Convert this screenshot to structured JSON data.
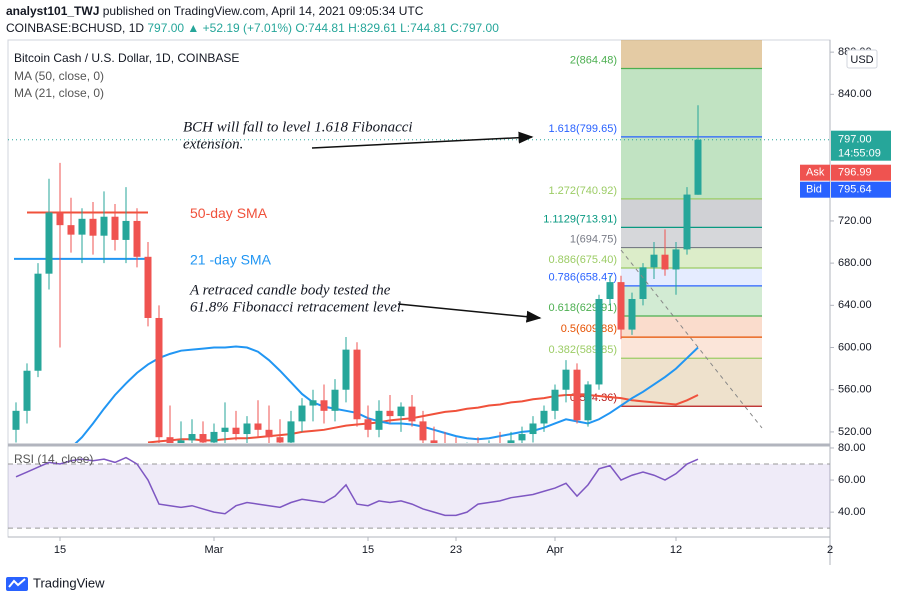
{
  "header": {
    "author": "analyst101_TWJ",
    "published": "published on TradingView.com, April 14, 2021 09:05:34 UTC",
    "symbol": "COINBASE:BCHUSD, 1D",
    "price": "797.00",
    "change": "▲ +52.19 (+7.01%)",
    "ohlc": "O:744.81 H:829.61 L:744.81 C:797.00"
  },
  "footer": {
    "brand": "TradingView"
  },
  "chart_data": [
    {
      "type": "candlestick",
      "title": "Bitcoin Cash / U.S. Dollar, 1D, COINBASE",
      "currency": "USD",
      "categories": [
        null,
        null,
        null,
        null,
        "15",
        null,
        null,
        null,
        null,
        null,
        null,
        null,
        null,
        null,
        null,
        null,
        null,
        null,
        "Mar",
        null,
        null,
        null,
        null,
        null,
        null,
        null,
        null,
        null,
        null,
        null,
        null,
        null,
        "15",
        null,
        null,
        null,
        null,
        null,
        null,
        null,
        "23",
        null,
        null,
        null,
        null,
        null,
        null,
        null,
        null,
        "Apr",
        null,
        null,
        null,
        null,
        null,
        null,
        null,
        null,
        null,
        null,
        "12",
        null,
        null,
        null,
        null,
        null,
        null,
        null,
        null,
        null,
        null,
        null,
        null,
        null,
        "2"
      ],
      "open": [
        522,
        540,
        578,
        670,
        728,
        716,
        707,
        722,
        706,
        724,
        702,
        720,
        686,
        628,
        515,
        506,
        512,
        518,
        510,
        520,
        524,
        518,
        528,
        522,
        515,
        510,
        530,
        545,
        550,
        540,
        560,
        598,
        532,
        522,
        540,
        535,
        544,
        530,
        512,
        505,
        500,
        495,
        502,
        498,
        506,
        505,
        512,
        518,
        528,
        540,
        560,
        579,
        531,
        565,
        646,
        662,
        617,
        646,
        676,
        688,
        674,
        693,
        744.81,
        null,
        null,
        null,
        null,
        null,
        null,
        null,
        null,
        null,
        null,
        null,
        null
      ],
      "high": [
        548,
        585,
        680,
        760,
        775,
        742,
        732,
        738,
        748,
        736,
        752,
        732,
        700,
        640,
        545,
        530,
        532,
        530,
        528,
        548,
        540,
        535,
        550,
        545,
        532,
        540,
        552,
        560,
        565,
        570,
        610,
        605,
        545,
        550,
        555,
        548,
        555,
        540,
        525,
        520,
        515,
        510,
        515,
        512,
        520,
        520,
        525,
        535,
        545,
        565,
        588,
        585,
        568,
        650,
        668,
        668,
        652,
        680,
        700,
        712,
        700,
        752,
        829.61,
        null,
        null,
        null,
        null,
        null,
        null,
        null,
        null,
        null,
        null,
        null,
        null
      ],
      "low": [
        510,
        528,
        572,
        655,
        600,
        690,
        680,
        688,
        680,
        692,
        680,
        676,
        620,
        505,
        498,
        490,
        495,
        500,
        495,
        505,
        512,
        505,
        515,
        508,
        500,
        505,
        520,
        530,
        528,
        530,
        548,
        525,
        515,
        515,
        528,
        520,
        525,
        505,
        495,
        490,
        485,
        488,
        490,
        488,
        495,
        495,
        505,
        510,
        520,
        532,
        548,
        528,
        525,
        560,
        640,
        608,
        612,
        640,
        665,
        668,
        650,
        688,
        744.81,
        null,
        null,
        null,
        null,
        null,
        null,
        null,
        null,
        null,
        null,
        null,
        null
      ],
      "close": [
        540,
        578,
        670,
        728,
        716,
        707,
        722,
        706,
        724,
        702,
        720,
        686,
        628,
        515,
        506,
        512,
        518,
        510,
        520,
        524,
        518,
        528,
        522,
        515,
        510,
        530,
        545,
        550,
        540,
        560,
        598,
        532,
        522,
        540,
        535,
        544,
        530,
        512,
        505,
        500,
        495,
        502,
        498,
        506,
        505,
        512,
        518,
        528,
        540,
        560,
        579,
        531,
        565,
        646,
        662,
        617,
        646,
        676,
        688,
        674,
        693,
        745,
        797,
        null,
        null,
        null,
        null,
        null,
        null,
        null,
        null,
        null,
        null,
        null,
        null
      ],
      "up_color": "#26a69a",
      "down_color": "#ef5350",
      "series": [
        {
          "name": "MA (50, close, 0)",
          "color": "#f0513b",
          "values": [
            null,
            null,
            null,
            null,
            null,
            null,
            null,
            null,
            null,
            null,
            null,
            null,
            510,
            511,
            512,
            513,
            513,
            512,
            512,
            513,
            514,
            514,
            515,
            516,
            517,
            518,
            520,
            521,
            522,
            524,
            526,
            527,
            528,
            529,
            531,
            532,
            533,
            535,
            537,
            539,
            540,
            542,
            543,
            545,
            546,
            548,
            549,
            551,
            552,
            554,
            555,
            555,
            555,
            554,
            553,
            552,
            550,
            549,
            548,
            547,
            546,
            550,
            555,
            null,
            null,
            null,
            null,
            null,
            null,
            null,
            null,
            null,
            null,
            null,
            null
          ]
        },
        {
          "name": "MA (21, close, 0)",
          "color": "#2196f3",
          "values": [
            null,
            null,
            null,
            null,
            null,
            505,
            515,
            528,
            542,
            555,
            566,
            576,
            584,
            590,
            594,
            597,
            598,
            599,
            600,
            600,
            601,
            600,
            596,
            588,
            578,
            567,
            556,
            548,
            544,
            542,
            540,
            538,
            533,
            530,
            528,
            528,
            527,
            525,
            522,
            519,
            516,
            514,
            513,
            514,
            516,
            518,
            520,
            521,
            524,
            528,
            532,
            530,
            528,
            532,
            538,
            545,
            552,
            558,
            565,
            572,
            580,
            590,
            600,
            null,
            null,
            null,
            null,
            null,
            null,
            null,
            null,
            null,
            null,
            null,
            null
          ]
        }
      ],
      "ylim": [
        509.5,
        891.5
      ],
      "yticks": [
        {
          "value": 520,
          "label": "520.00"
        },
        {
          "value": 560,
          "label": "560.00"
        },
        {
          "value": 600,
          "label": "600.00"
        },
        {
          "value": 640,
          "label": "640.00"
        },
        {
          "value": 680,
          "label": "680.00"
        },
        {
          "value": 720,
          "label": "720.00"
        },
        {
          "value": 840,
          "label": "840.00"
        },
        {
          "value": 880,
          "label": "880.00"
        }
      ],
      "last_price": {
        "value": 797,
        "label": "797.00",
        "countdown": "14:55:09"
      },
      "ask": {
        "name": "Ask",
        "value": 796.99
      },
      "bid": {
        "name": "Bid",
        "value": 795.64
      },
      "fib_levels": [
        {
          "label": "2(864.48)",
          "value": 864.48,
          "color": "#4caf50",
          "fill": "rgba(76,175,80,0.35)"
        },
        {
          "label": "1.618(799.65)",
          "value": 799.65,
          "color": "#2962ff",
          "fill": "rgba(76,175,80,0.35)"
        },
        {
          "label": "1.272(740.92)",
          "value": 740.92,
          "color": "#9ccc65",
          "fill": "rgba(120,123,134,0.35)"
        },
        {
          "label": "1.1129(713.91)",
          "value": 713.91,
          "color": "#089981",
          "fill": "rgba(120,123,134,0.3)"
        },
        {
          "label": "1(694.75)",
          "value": 694.75,
          "color": "#787b86",
          "fill": "rgba(156,204,101,0.35)"
        },
        {
          "label": "0.886(675.40)",
          "value": 675.4,
          "color": "#9ccc65",
          "fill": "rgba(41,98,255,0.12)"
        },
        {
          "label": "0.786(658.47)",
          "value": 658.47,
          "color": "#2962ff",
          "fill": "rgba(76,175,80,0.25)"
        },
        {
          "label": "0.618(629.91)",
          "value": 629.91,
          "color": "#4caf50",
          "fill": "rgba(230,81,0,0.2)"
        },
        {
          "label": "0.5(609.88)",
          "value": 609.88,
          "color": "#e65100",
          "fill": "rgba(230,81,0,0.15)"
        },
        {
          "label": "0.382(589.85)",
          "value": 589.85,
          "color": "#9ccc65",
          "fill": "rgba(205,170,110,0.35)"
        },
        {
          "label": "0(544.36)",
          "value": 544.36,
          "color": "#b71c1c"
        }
      ],
      "sma_notes": [
        {
          "text": "50-day SMA",
          "value": 728,
          "color": "#f0513b"
        },
        {
          "text": "21 -day SMA",
          "value": 684,
          "color": "#2196f3"
        }
      ],
      "annotations": [
        [
          "BCH will fall to level 1.618 Fibonacci",
          "extension."
        ],
        [
          "A retraced candle body tested the",
          "61.8% Fibonacci retracement level."
        ]
      ]
    },
    {
      "type": "line",
      "title": "RSI (14, close)",
      "color": "#7e57c2",
      "values": [
        62,
        65,
        68,
        71,
        70,
        72,
        73,
        72,
        73,
        71,
        74,
        70,
        60,
        45,
        44,
        43,
        44,
        42,
        40,
        39,
        44,
        46,
        45,
        44,
        43,
        46,
        48,
        47,
        46,
        50,
        57,
        45,
        44,
        47,
        46,
        47,
        45,
        42,
        40,
        38,
        38,
        40,
        45,
        46,
        47,
        49,
        50,
        51,
        53,
        55,
        58,
        50,
        57,
        67,
        69,
        60,
        63,
        65,
        63,
        60,
        64,
        70,
        73,
        null,
        null,
        null,
        null,
        null,
        null,
        null,
        null,
        null,
        null,
        null,
        null
      ],
      "band": [
        30,
        70
      ],
      "ylim": [
        24.5,
        80.6
      ],
      "yticks": [
        {
          "value": 40,
          "label": "40.00"
        },
        {
          "value": 60,
          "label": "60.00"
        },
        {
          "value": 80,
          "label": "80.00"
        }
      ]
    }
  ]
}
